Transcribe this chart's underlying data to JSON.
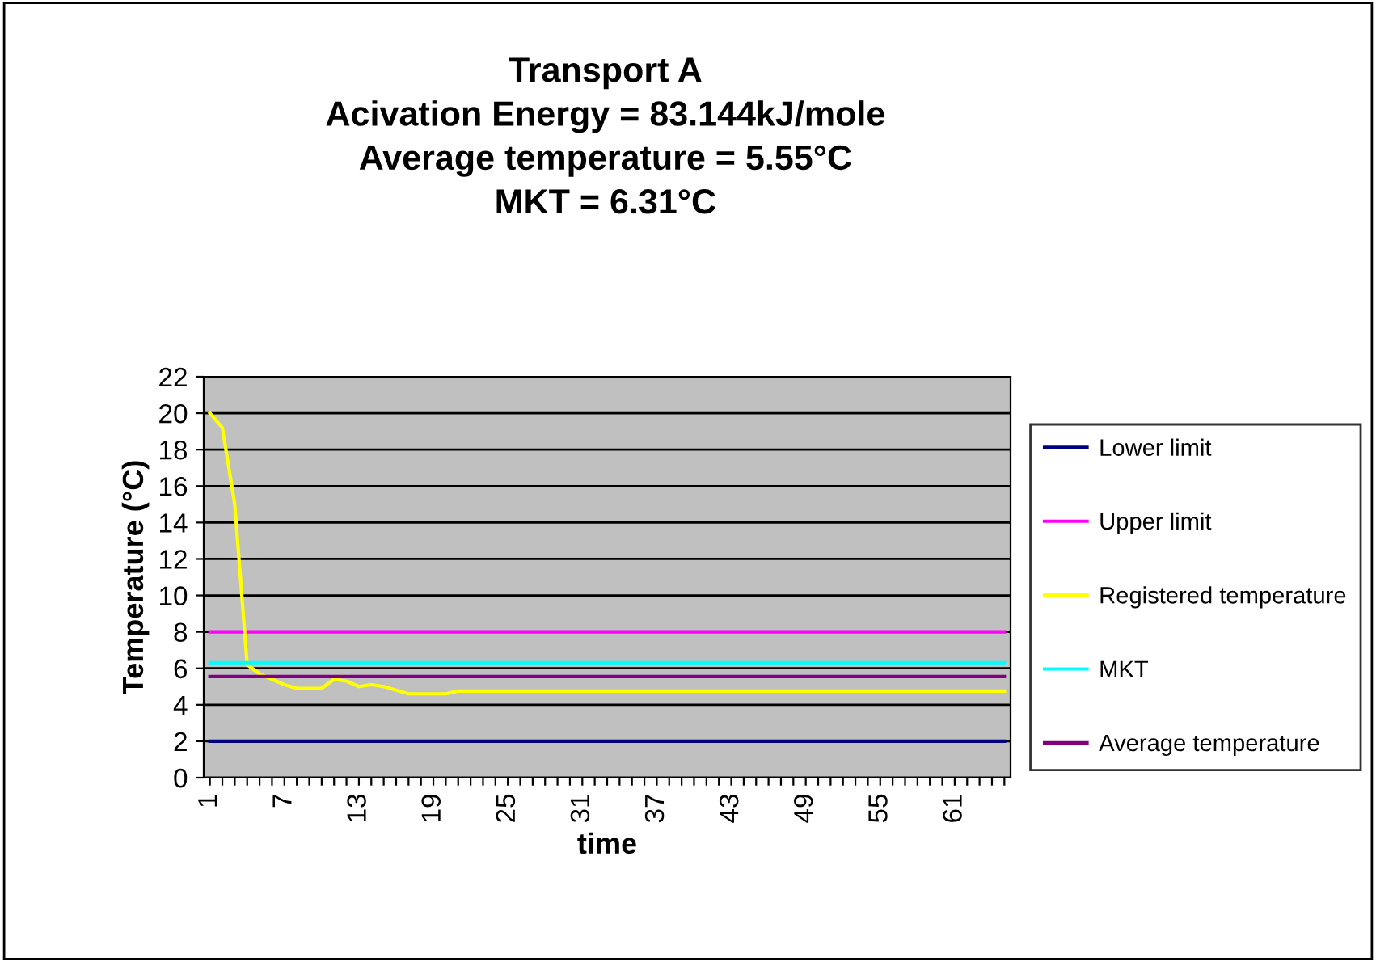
{
  "chart_data": {
    "type": "line",
    "title": "Transport A\nAcivation Energy = 83.144kJ/mole\nAverage temperature = 5.55°C\nMKT = 6.31°C",
    "xlabel": "time",
    "ylabel": "Temperature (°C)",
    "categories": [
      "1",
      null,
      null,
      null,
      null,
      null,
      "7",
      null,
      null,
      null,
      null,
      null,
      "13",
      null,
      null,
      null,
      null,
      null,
      "19",
      null,
      null,
      null,
      null,
      null,
      "25",
      null,
      null,
      null,
      null,
      null,
      "31",
      null,
      null,
      null,
      null,
      null,
      "37",
      null,
      null,
      null,
      null,
      null,
      "43",
      null,
      null,
      null,
      null,
      null,
      "49",
      null,
      null,
      null,
      null,
      null,
      "55",
      null,
      null,
      null,
      null,
      null,
      "61",
      null,
      null,
      null,
      null
    ],
    "series": [
      {
        "name": "Lower limit",
        "color": "#000080",
        "values": [
          2,
          2,
          2,
          2,
          2,
          2,
          2,
          2,
          2,
          2,
          2,
          2,
          2,
          2,
          2,
          2,
          2,
          2,
          2,
          2,
          2,
          2,
          2,
          2,
          2,
          2,
          2,
          2,
          2,
          2,
          2,
          2,
          2,
          2,
          2,
          2,
          2,
          2,
          2,
          2,
          2,
          2,
          2,
          2,
          2,
          2,
          2,
          2,
          2,
          2,
          2,
          2,
          2,
          2,
          2,
          2,
          2,
          2,
          2,
          2,
          2,
          2,
          2,
          2,
          2
        ]
      },
      {
        "name": "Upper limit",
        "color": "#ff00ff",
        "values": [
          8,
          8,
          8,
          8,
          8,
          8,
          8,
          8,
          8,
          8,
          8,
          8,
          8,
          8,
          8,
          8,
          8,
          8,
          8,
          8,
          8,
          8,
          8,
          8,
          8,
          8,
          8,
          8,
          8,
          8,
          8,
          8,
          8,
          8,
          8,
          8,
          8,
          8,
          8,
          8,
          8,
          8,
          8,
          8,
          8,
          8,
          8,
          8,
          8,
          8,
          8,
          8,
          8,
          8,
          8,
          8,
          8,
          8,
          8,
          8,
          8,
          8,
          8,
          8,
          8
        ]
      },
      {
        "name": "Registered temperature",
        "color": "#ffff00",
        "values": [
          20,
          19.2,
          15,
          6.2,
          5.7,
          5.4,
          5.1,
          4.9,
          4.9,
          4.9,
          5.4,
          5.3,
          5,
          5.1,
          5,
          4.8,
          4.6,
          4.6,
          4.6,
          4.6,
          4.75,
          4.75,
          4.75,
          4.75,
          4.75,
          4.75,
          4.75,
          4.75,
          4.75,
          4.75,
          4.75,
          4.75,
          4.75,
          4.75,
          4.75,
          4.75,
          4.75,
          4.75,
          4.75,
          4.75,
          4.75,
          4.75,
          4.75,
          4.75,
          4.75,
          4.75,
          4.75,
          4.75,
          4.75,
          4.75,
          4.75,
          4.75,
          4.75,
          4.75,
          4.75,
          4.75,
          4.75,
          4.75,
          4.75,
          4.75,
          4.75,
          4.75,
          4.75,
          4.75,
          4.75
        ]
      },
      {
        "name": "MKT",
        "color": "#00ffff",
        "values": [
          6.31,
          6.31,
          6.31,
          6.31,
          6.31,
          6.31,
          6.31,
          6.31,
          6.31,
          6.31,
          6.31,
          6.31,
          6.31,
          6.31,
          6.31,
          6.31,
          6.31,
          6.31,
          6.31,
          6.31,
          6.31,
          6.31,
          6.31,
          6.31,
          6.31,
          6.31,
          6.31,
          6.31,
          6.31,
          6.31,
          6.31,
          6.31,
          6.31,
          6.31,
          6.31,
          6.31,
          6.31,
          6.31,
          6.31,
          6.31,
          6.31,
          6.31,
          6.31,
          6.31,
          6.31,
          6.31,
          6.31,
          6.31,
          6.31,
          6.31,
          6.31,
          6.31,
          6.31,
          6.31,
          6.31,
          6.31,
          6.31,
          6.31,
          6.31,
          6.31,
          6.31,
          6.31,
          6.31,
          6.31,
          6.31
        ]
      },
      {
        "name": "Average temperature",
        "color": "#800080",
        "values": [
          5.55,
          5.55,
          5.55,
          5.55,
          5.55,
          5.55,
          5.55,
          5.55,
          5.55,
          5.55,
          5.55,
          5.55,
          5.55,
          5.55,
          5.55,
          5.55,
          5.55,
          5.55,
          5.55,
          5.55,
          5.55,
          5.55,
          5.55,
          5.55,
          5.55,
          5.55,
          5.55,
          5.55,
          5.55,
          5.55,
          5.55,
          5.55,
          5.55,
          5.55,
          5.55,
          5.55,
          5.55,
          5.55,
          5.55,
          5.55,
          5.55,
          5.55,
          5.55,
          5.55,
          5.55,
          5.55,
          5.55,
          5.55,
          5.55,
          5.55,
          5.55,
          5.55,
          5.55,
          5.55,
          5.55,
          5.55,
          5.55,
          5.55,
          5.55,
          5.55,
          5.55,
          5.55,
          5.55,
          5.55,
          5.55
        ]
      }
    ],
    "ylim": [
      0,
      22
    ],
    "yticks": [
      0,
      2,
      4,
      6,
      8,
      10,
      12,
      14,
      16,
      18,
      20,
      22
    ],
    "grid": "y",
    "legend": "right",
    "marker": "none",
    "line_style": "solid"
  }
}
